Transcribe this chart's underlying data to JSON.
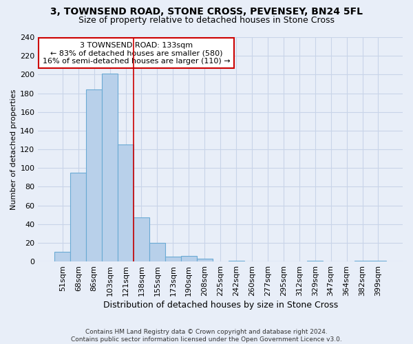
{
  "title_line1": "3, TOWNSEND ROAD, STONE CROSS, PEVENSEY, BN24 5FL",
  "title_line2": "Size of property relative to detached houses in Stone Cross",
  "xlabel": "Distribution of detached houses by size in Stone Cross",
  "ylabel": "Number of detached properties",
  "footnote": "Contains HM Land Registry data © Crown copyright and database right 2024.\nContains public sector information licensed under the Open Government Licence v3.0.",
  "bin_labels": [
    "51sqm",
    "68sqm",
    "86sqm",
    "103sqm",
    "121sqm",
    "138sqm",
    "155sqm",
    "173sqm",
    "190sqm",
    "208sqm",
    "225sqm",
    "242sqm",
    "260sqm",
    "277sqm",
    "295sqm",
    "312sqm",
    "329sqm",
    "347sqm",
    "364sqm",
    "382sqm",
    "399sqm"
  ],
  "bar_heights": [
    10,
    95,
    184,
    201,
    125,
    47,
    20,
    5,
    6,
    3,
    0,
    1,
    0,
    0,
    0,
    0,
    1,
    0,
    0,
    1,
    1
  ],
  "bar_color": "#b8d0ea",
  "bar_edge_color": "#6aaad4",
  "vline_index": 4.5,
  "annotation_text": "3 TOWNSEND ROAD: 133sqm\n← 83% of detached houses are smaller (580)\n16% of semi-detached houses are larger (110) →",
  "annotation_box_color": "white",
  "annotation_box_edge_color": "#cc0000",
  "vline_color": "#cc0000",
  "ylim": [
    0,
    240
  ],
  "yticks": [
    0,
    20,
    40,
    60,
    80,
    100,
    120,
    140,
    160,
    180,
    200,
    220,
    240
  ],
  "background_color": "#e8eef8",
  "grid_color": "#c8d4e8",
  "title_fontsize": 10,
  "subtitle_fontsize": 9,
  "ylabel_fontsize": 8,
  "xlabel_fontsize": 9,
  "tick_fontsize": 8,
  "footnote_fontsize": 6.5
}
